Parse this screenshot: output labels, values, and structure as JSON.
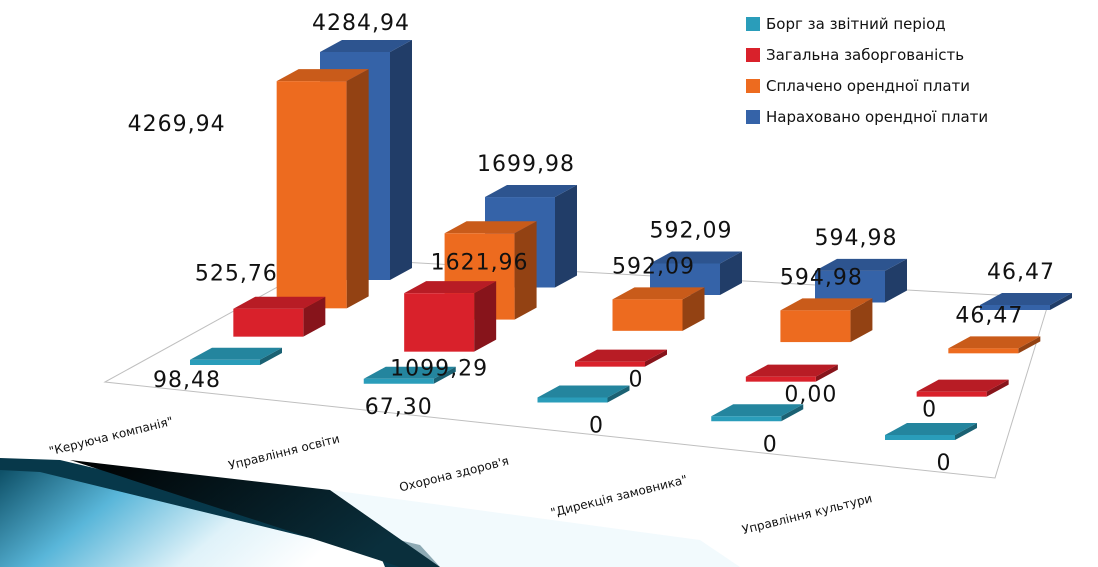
{
  "chart_data": {
    "type": "bar",
    "categories": [
      "\"Керуюча компанія\"",
      "Управління освіти",
      "Охорона здоров'я",
      "\"Дирекція замовника\"",
      "Управління культури"
    ],
    "series": [
      {
        "name": "Нараховано орендної плати",
        "color": "#3563A8",
        "values": [
          4284.94,
          1699.98,
          592.09,
          594.98,
          46.47
        ],
        "labels": [
          "4284,94",
          "1699,98",
          "592,09",
          "594,98",
          "46,47"
        ]
      },
      {
        "name": "Сплачено орендної плати",
        "color": "#ED6B1F",
        "values": [
          4269.94,
          1621.96,
          592.09,
          594.98,
          46.47
        ],
        "labels": [
          "4269,94",
          "1621,96",
          "592,09",
          "594,98",
          "46,47"
        ]
      },
      {
        "name": "Загальна заборгованість",
        "color": "#D9212B",
        "values": [
          525.76,
          1099.29,
          0,
          0,
          0
        ],
        "labels": [
          "525,76",
          "1099,29",
          "0",
          "0,00",
          "0"
        ]
      },
      {
        "name": "Борг за звітний період",
        "color": "#2A9DBA",
        "values": [
          98.48,
          67.3,
          0,
          0,
          0
        ],
        "labels": [
          "98,48",
          "67,30",
          "0",
          "0",
          "0"
        ]
      }
    ],
    "legend_order": [
      "Борг за звітний період",
      "Загальна заборгованість",
      "Сплачено орендної плати",
      "Нараховано орендної плати"
    ],
    "legend_position": "top-right",
    "chart_style": "3d-column",
    "title": "",
    "xlabel": "",
    "ylabel": ""
  }
}
